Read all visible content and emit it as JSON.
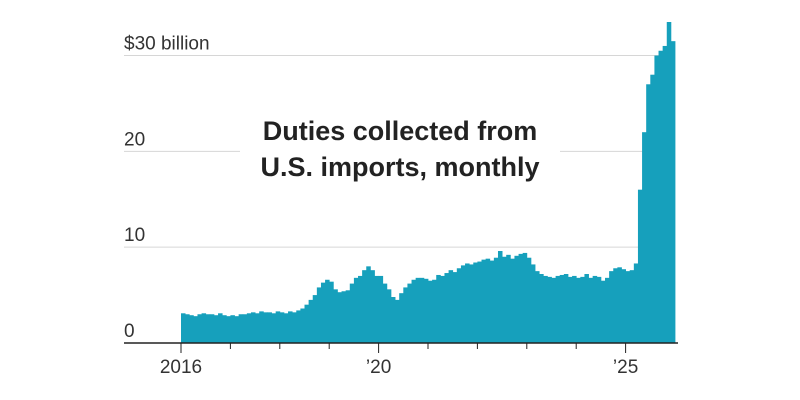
{
  "chart_data": {
    "type": "bar",
    "title": [
      "Duties collected from",
      "U.S. imports, monthly"
    ],
    "color": "#16a0bc",
    "categories": [
      "2016",
      null,
      null,
      null,
      null,
      null,
      null,
      null,
      null,
      null,
      null,
      null,
      null,
      null,
      null,
      null,
      null,
      null,
      null,
      null,
      null,
      null,
      null,
      null,
      null,
      null,
      null,
      null,
      null,
      null,
      null,
      null,
      null,
      null,
      null,
      null,
      null,
      null,
      null,
      null,
      null,
      null,
      null,
      null,
      null,
      null,
      null,
      null,
      "’20",
      null,
      null,
      null,
      null,
      null,
      null,
      null,
      null,
      null,
      null,
      null,
      null,
      null,
      null,
      null,
      null,
      null,
      null,
      null,
      null,
      null,
      null,
      null,
      null,
      null,
      null,
      null,
      null,
      null,
      null,
      null,
      null,
      null,
      null,
      null,
      null,
      null,
      null,
      null,
      null,
      null,
      null,
      null,
      null,
      null,
      null,
      null,
      null,
      null,
      null,
      null,
      null,
      null,
      null,
      null,
      null,
      null,
      null,
      null,
      "’25",
      null,
      null,
      null,
      null,
      null,
      null,
      null,
      null,
      null,
      null,
      null
    ],
    "values": [
      3.1,
      3.0,
      2.9,
      2.8,
      3.0,
      3.1,
      3.0,
      3.0,
      2.9,
      3.1,
      2.9,
      2.8,
      2.9,
      2.8,
      3.0,
      3.0,
      3.1,
      3.2,
      3.1,
      3.3,
      3.2,
      3.2,
      3.1,
      3.3,
      3.2,
      3.1,
      3.3,
      3.2,
      3.4,
      3.6,
      4.0,
      4.5,
      5.0,
      5.8,
      6.3,
      6.6,
      6.4,
      5.6,
      5.3,
      5.4,
      5.5,
      6.2,
      6.8,
      7.0,
      7.6,
      8.0,
      7.6,
      7.0,
      7.0,
      6.2,
      5.6,
      4.8,
      4.5,
      5.2,
      5.8,
      6.2,
      6.6,
      6.8,
      6.8,
      6.7,
      6.5,
      6.6,
      7.1,
      7.0,
      7.3,
      7.6,
      7.4,
      7.8,
      8.1,
      8.3,
      8.2,
      8.4,
      8.5,
      8.7,
      8.8,
      8.6,
      8.9,
      9.6,
      9.0,
      9.2,
      8.8,
      9.1,
      9.3,
      9.4,
      8.9,
      8.2,
      7.5,
      7.2,
      7.0,
      6.9,
      6.8,
      7.0,
      7.1,
      7.2,
      6.9,
      7.0,
      6.8,
      6.9,
      7.2,
      6.8,
      7.0,
      6.9,
      6.5,
      6.8,
      7.5,
      7.8,
      7.9,
      7.7,
      7.5,
      7.6,
      8.3,
      16,
      22,
      27,
      28,
      30,
      30.5,
      31,
      33.5,
      31.5
    ],
    "ylim": [
      0,
      33.5
    ],
    "yticks": [
      0,
      10,
      20,
      {
        "value": 30,
        "label": "$30 billion"
      }
    ],
    "grid": true
  }
}
